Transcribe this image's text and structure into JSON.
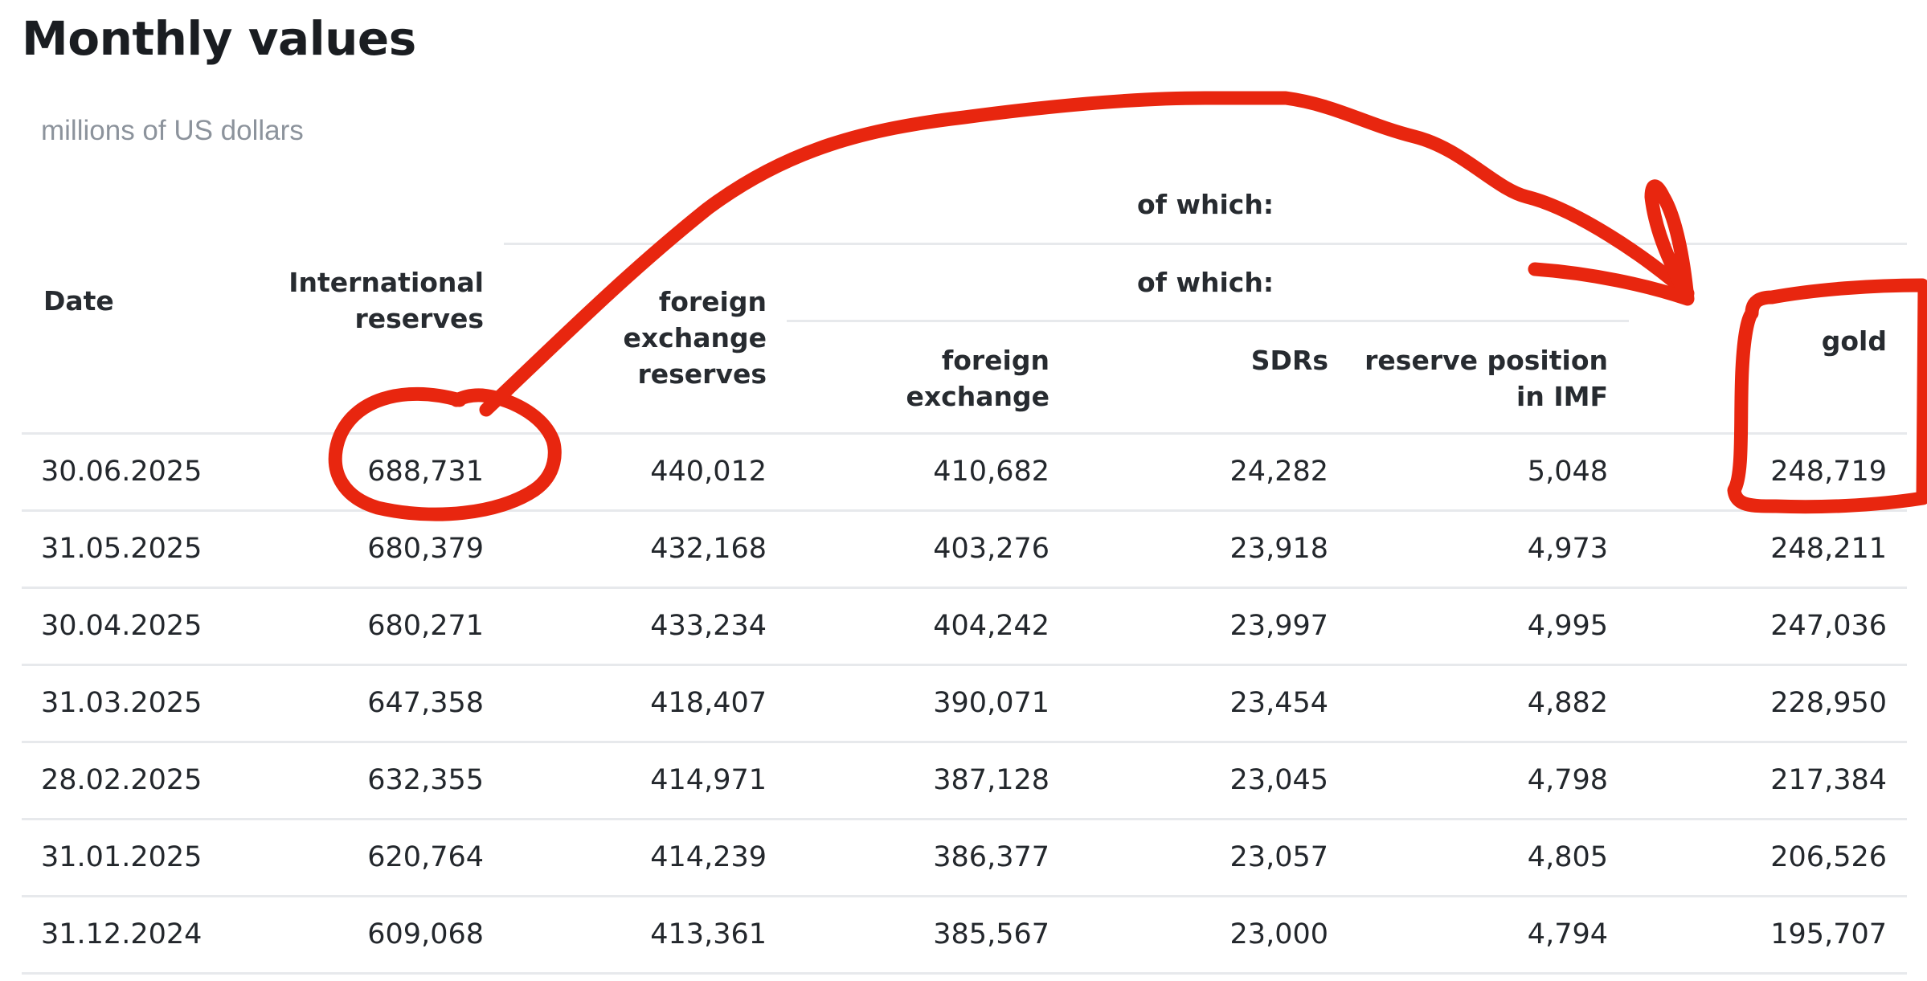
{
  "title": "Monthly values",
  "units": "millions of US dollars",
  "headers": {
    "date": "Date",
    "international_reserves": [
      "International",
      "reserves"
    ],
    "of_which_top": "of which:",
    "foreign_exchange_reserves": [
      "foreign",
      "exchange",
      "reserves"
    ],
    "of_which_sub": "of which:",
    "foreign_exchange": [
      "foreign",
      "exchange"
    ],
    "sdrs": "SDRs",
    "reserve_position": [
      "reserve position",
      "in IMF"
    ],
    "gold": "gold"
  },
  "rows": [
    [
      "30.06.2025",
      "688,731",
      "440,012",
      "410,682",
      "24,282",
      "5,048",
      "248,719"
    ],
    [
      "31.05.2025",
      "680,379",
      "432,168",
      "403,276",
      "23,918",
      "4,973",
      "248,211"
    ],
    [
      "30.04.2025",
      "680,271",
      "433,234",
      "404,242",
      "23,997",
      "4,995",
      "247,036"
    ],
    [
      "31.03.2025",
      "647,358",
      "418,407",
      "390,071",
      "23,454",
      "4,882",
      "228,950"
    ],
    [
      "28.02.2025",
      "632,355",
      "414,971",
      "387,128",
      "23,045",
      "4,798",
      "217,384"
    ],
    [
      "31.01.2025",
      "620,764",
      "414,239",
      "386,377",
      "23,057",
      "4,805",
      "206,526"
    ],
    [
      "31.12.2024",
      "609,068",
      "413,361",
      "385,567",
      "23,000",
      "4,794",
      "195,707"
    ]
  ],
  "annotation": {
    "color": "#e8260f",
    "from": "international-reserves-first-value",
    "to": "gold-first-value"
  }
}
